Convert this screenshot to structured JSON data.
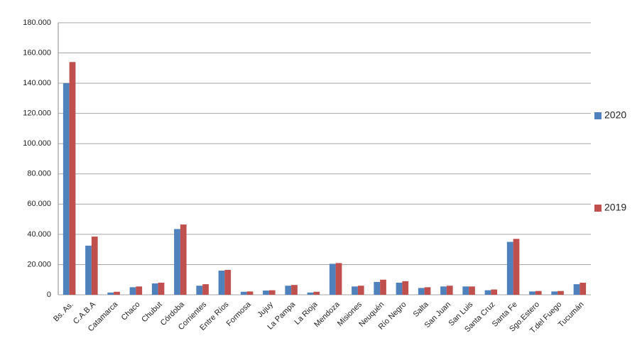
{
  "chart_data": {
    "type": "bar",
    "categories": [
      "Bs. As.",
      "C.A.B.A",
      "Catamarca",
      "Chaco",
      "Chubut",
      "Córdoba",
      "Corrientes",
      "Entre Ríos",
      "Formosa",
      "Jujuy",
      "La Pampa",
      "La Rioja",
      "Mendoza",
      "Misiones",
      "Neuquén",
      "Río Negro",
      "Salta",
      "San Juan",
      "San Luis",
      "Santa Cruz",
      "Santa Fe",
      "Sgo.Estero",
      "T.del Fuego",
      "Tucumán"
    ],
    "series": [
      {
        "name": "2020",
        "color": "#4f81bd",
        "values": [
          140000,
          32500,
          1500,
          5000,
          7500,
          43500,
          6000,
          16000,
          2000,
          2800,
          6000,
          1500,
          20500,
          5500,
          8500,
          8000,
          4500,
          5500,
          5500,
          3000,
          35000,
          2200,
          2200,
          7000
        ]
      },
      {
        "name": "2019",
        "color": "#c0504d",
        "values": [
          154000,
          38500,
          2000,
          5500,
          8000,
          46500,
          7000,
          16500,
          2200,
          3000,
          6500,
          2000,
          21000,
          6000,
          10000,
          9000,
          5000,
          6000,
          5500,
          3500,
          37000,
          2500,
          2500,
          8000
        ]
      }
    ],
    "ylim": [
      0,
      180000
    ],
    "yticks": [
      0,
      {
        "value": 20000,
        "label": "20.000"
      },
      {
        "value": 40000,
        "label": "40.000"
      },
      {
        "value": 60000,
        "label": "60.000"
      },
      {
        "value": 80000,
        "label": "80.000"
      },
      {
        "value": 100000,
        "label": "100.000"
      },
      {
        "value": 120000,
        "label": "120.000"
      },
      {
        "value": 140000,
        "label": "140.000"
      },
      {
        "value": 160000,
        "label": "160.000"
      },
      {
        "value": 180000,
        "label": "180.000"
      }
    ],
    "grid": true
  }
}
